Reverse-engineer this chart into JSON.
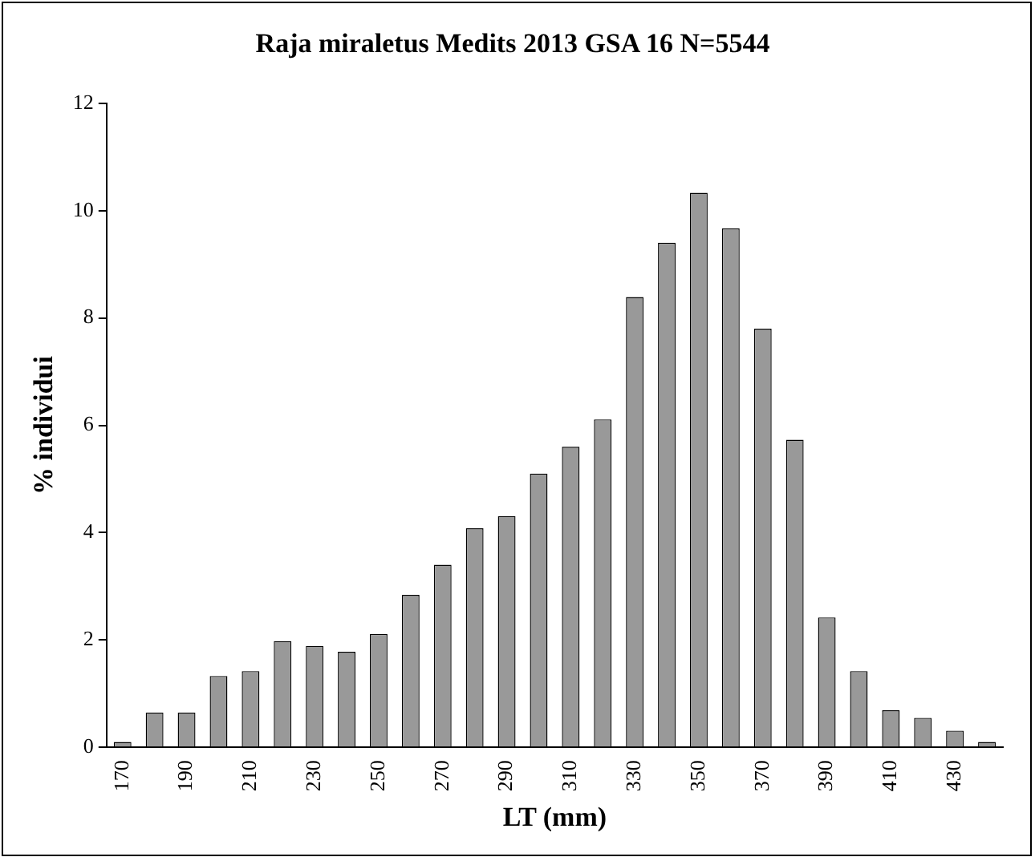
{
  "chart_data": {
    "type": "bar",
    "title": "Raja miraletus Medits 2013 GSA 16 N=5544",
    "xlabel": "LT (mm)",
    "ylabel": "% individui",
    "categories": [
      "170",
      null,
      "190",
      null,
      "210",
      null,
      "230",
      null,
      "250",
      null,
      "270",
      null,
      "290",
      null,
      "310",
      null,
      "330",
      null,
      "350",
      null,
      "370",
      null,
      "390",
      null,
      "410",
      null,
      "430",
      null
    ],
    "values": [
      0.1,
      0.65,
      0.65,
      1.33,
      1.42,
      1.98,
      1.89,
      1.78,
      2.11,
      2.84,
      3.4,
      4.08,
      4.31,
      5.1,
      5.6,
      6.11,
      8.39,
      9.4,
      10.33,
      9.67,
      7.8,
      5.73,
      2.42,
      1.42,
      0.69,
      0.55,
      0.31,
      0.1
    ],
    "color": "#999999",
    "ylim": [
      0,
      12
    ],
    "yticks": [
      0,
      2,
      4,
      6,
      8,
      10,
      12
    ],
    "grid": false
  }
}
